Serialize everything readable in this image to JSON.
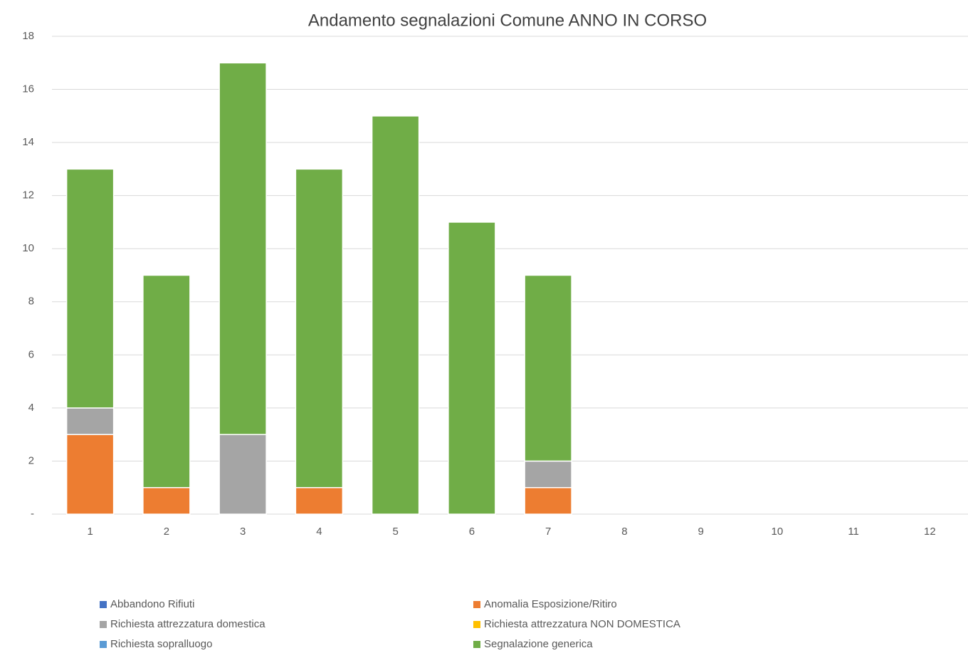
{
  "chart_data": {
    "type": "stacked-bar",
    "title": "Andamento segnalazioni Comune ANNO IN CORSO",
    "categories": [
      1,
      2,
      3,
      4,
      5,
      6,
      7,
      8,
      9,
      10,
      11,
      12
    ],
    "ylim": [
      0,
      18
    ],
    "yticks": [
      {
        "value": 0,
        "label": "-"
      },
      2,
      4,
      6,
      8,
      10,
      12,
      14,
      16,
      18
    ],
    "grid": true,
    "legend": "bottom",
    "series": [
      {
        "name": "Abbandono Rifiuti",
        "color": "#4472c4",
        "values": [
          0,
          0,
          0,
          0,
          0,
          0,
          0,
          null,
          null,
          null,
          null,
          null
        ]
      },
      {
        "name": "Anomalia Esposizione/Ritiro",
        "color": "#ed7d31",
        "values": [
          3,
          1,
          0,
          1,
          0,
          0,
          1,
          null,
          null,
          null,
          null,
          null
        ]
      },
      {
        "name": "Richiesta attrezzatura domestica",
        "color": "#a5a5a5",
        "values": [
          1,
          0,
          3,
          0,
          0,
          0,
          1,
          null,
          null,
          null,
          null,
          null
        ]
      },
      {
        "name": "Richiesta attrezzatura NON DOMESTICA",
        "color": "#ffc000",
        "values": [
          0,
          0,
          0,
          0,
          0,
          0,
          0,
          null,
          null,
          null,
          null,
          null
        ]
      },
      {
        "name": "Richiesta sopralluogo",
        "color": "#5b9bd5",
        "values": [
          0,
          0,
          0,
          0,
          0,
          0,
          0,
          null,
          null,
          null,
          null,
          null
        ]
      },
      {
        "name": "Segnalazione generica",
        "color": "#70ad47",
        "values": [
          9,
          8,
          14,
          12,
          15,
          11,
          7,
          null,
          null,
          null,
          null,
          null
        ]
      }
    ]
  }
}
